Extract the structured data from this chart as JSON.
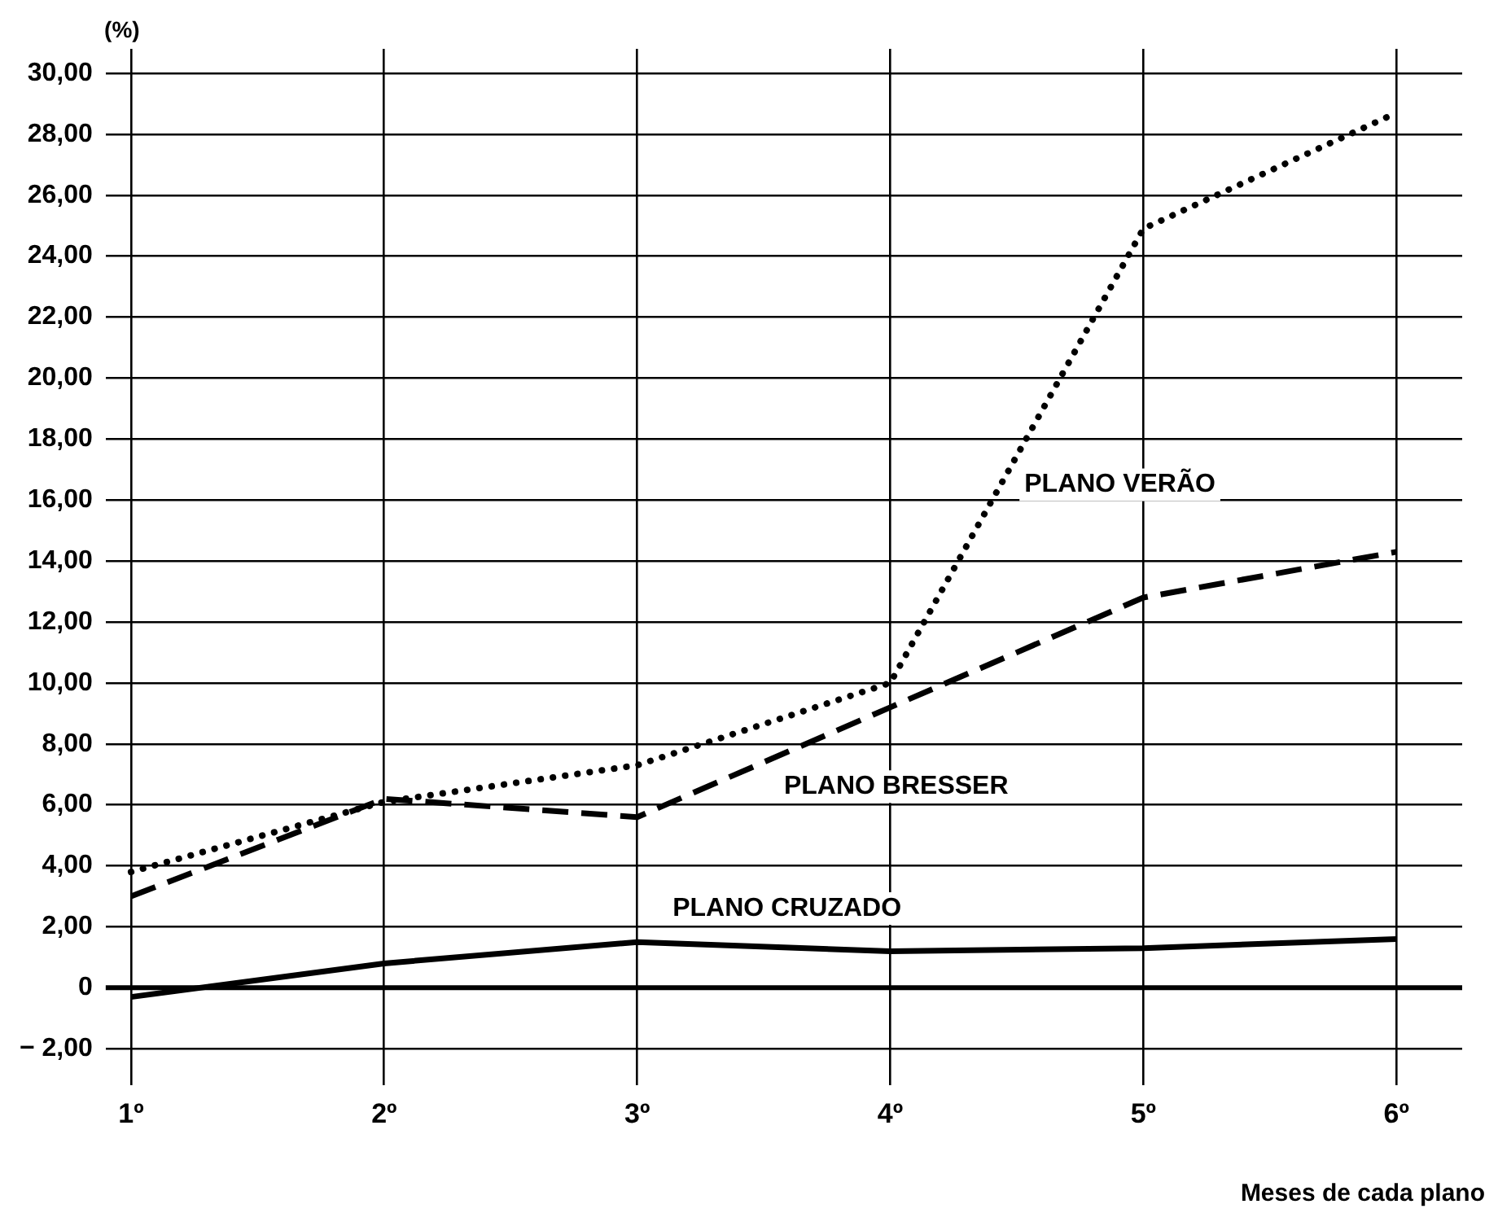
{
  "chart_data": {
    "type": "line",
    "xlabel": "Meses de cada plano",
    "ylabel": "(%)",
    "x": [
      1,
      2,
      3,
      4,
      5,
      6
    ],
    "xlim": [
      0.9,
      6.26
    ],
    "xticks": [
      {
        "value": 1,
        "label": "1º"
      },
      {
        "value": 2,
        "label": "2º"
      },
      {
        "value": 3,
        "label": "3º"
      },
      {
        "value": 4,
        "label": "4º"
      },
      {
        "value": 5,
        "label": "5º"
      },
      {
        "value": 6,
        "label": "6º"
      }
    ],
    "ylim": [
      -3.2,
      30.8
    ],
    "yticks": [
      {
        "value": -2,
        "label": "− 2,00"
      },
      {
        "value": 0,
        "label": "0"
      },
      {
        "value": 2,
        "label": "2,00"
      },
      {
        "value": 4,
        "label": "4,00"
      },
      {
        "value": 6,
        "label": "6,00"
      },
      {
        "value": 8,
        "label": "8,00"
      },
      {
        "value": 10,
        "label": "10,00"
      },
      {
        "value": 12,
        "label": "12,00"
      },
      {
        "value": 14,
        "label": "14,00"
      },
      {
        "value": 16,
        "label": "16,00"
      },
      {
        "value": 18,
        "label": "18,00"
      },
      {
        "value": 20,
        "label": "20,00"
      },
      {
        "value": 22,
        "label": "22,00"
      },
      {
        "value": 24,
        "label": "24,00"
      },
      {
        "value": 26,
        "label": "26,00"
      },
      {
        "value": 28,
        "label": "28,00"
      },
      {
        "value": 30,
        "label": "30,00"
      }
    ],
    "grid": true,
    "legend": false,
    "marker": "none",
    "ref_lines": [
      {
        "axis": "y",
        "value": 0,
        "color": "#000000"
      }
    ],
    "series": [
      {
        "name": "PLANO VERÃO",
        "color": "#000000",
        "line_style": "dotted",
        "values": [
          3.8,
          6.1,
          7.3,
          10.0,
          24.9,
          28.7
        ]
      },
      {
        "name": "PLANO BRESSER",
        "color": "#000000",
        "line_style": "dashed",
        "values": [
          3.0,
          6.2,
          5.6,
          9.2,
          12.8,
          14.3
        ]
      },
      {
        "name": "PLANO CRUZADO",
        "color": "#000000",
        "line_style": "solid",
        "values": [
          -0.3,
          0.8,
          1.5,
          1.2,
          1.3,
          1.6
        ]
      }
    ]
  }
}
